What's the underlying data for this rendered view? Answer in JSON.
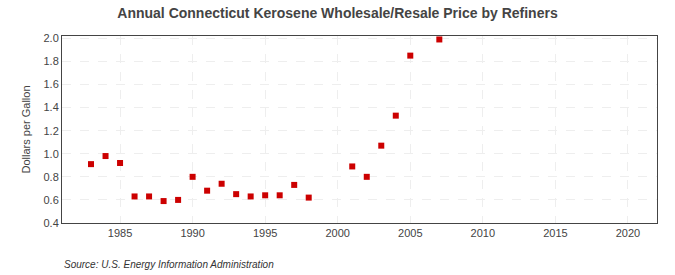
{
  "chart_data": {
    "type": "scatter",
    "title": "Annual Connecticut Kerosene Wholesale/Resale Price by Refiners",
    "y_label": "Dollars per Gallon",
    "annotations": [
      "Source: U.S. Energy Information Administration"
    ],
    "x": [
      1983,
      1984,
      1985,
      1986,
      1987,
      1988,
      1989,
      1990,
      1991,
      1992,
      1993,
      1994,
      1995,
      1996,
      1997,
      1998,
      2001,
      2002,
      2003,
      2004,
      2005,
      2007
    ],
    "values": [
      0.91,
      0.98,
      0.92,
      0.63,
      0.63,
      0.59,
      0.6,
      0.8,
      0.68,
      0.74,
      0.65,
      0.63,
      0.64,
      0.64,
      0.73,
      0.62,
      0.89,
      0.8,
      1.07,
      1.33,
      1.85,
      1.99
    ],
    "color": "#cc0000",
    "marker": "square",
    "xlim": [
      1981,
      2022
    ],
    "xticks": [
      1985,
      1990,
      1995,
      2000,
      2005,
      2010,
      2015,
      2020
    ],
    "ylim": [
      0.4,
      2.02
    ],
    "yticks": [
      0.4,
      0.6,
      0.8,
      {
        "value": 1.0,
        "label": "1.0"
      },
      1.2,
      1.4,
      1.6,
      1.8,
      {
        "value": 2.0,
        "label": "2.0"
      }
    ],
    "grid": true
  }
}
